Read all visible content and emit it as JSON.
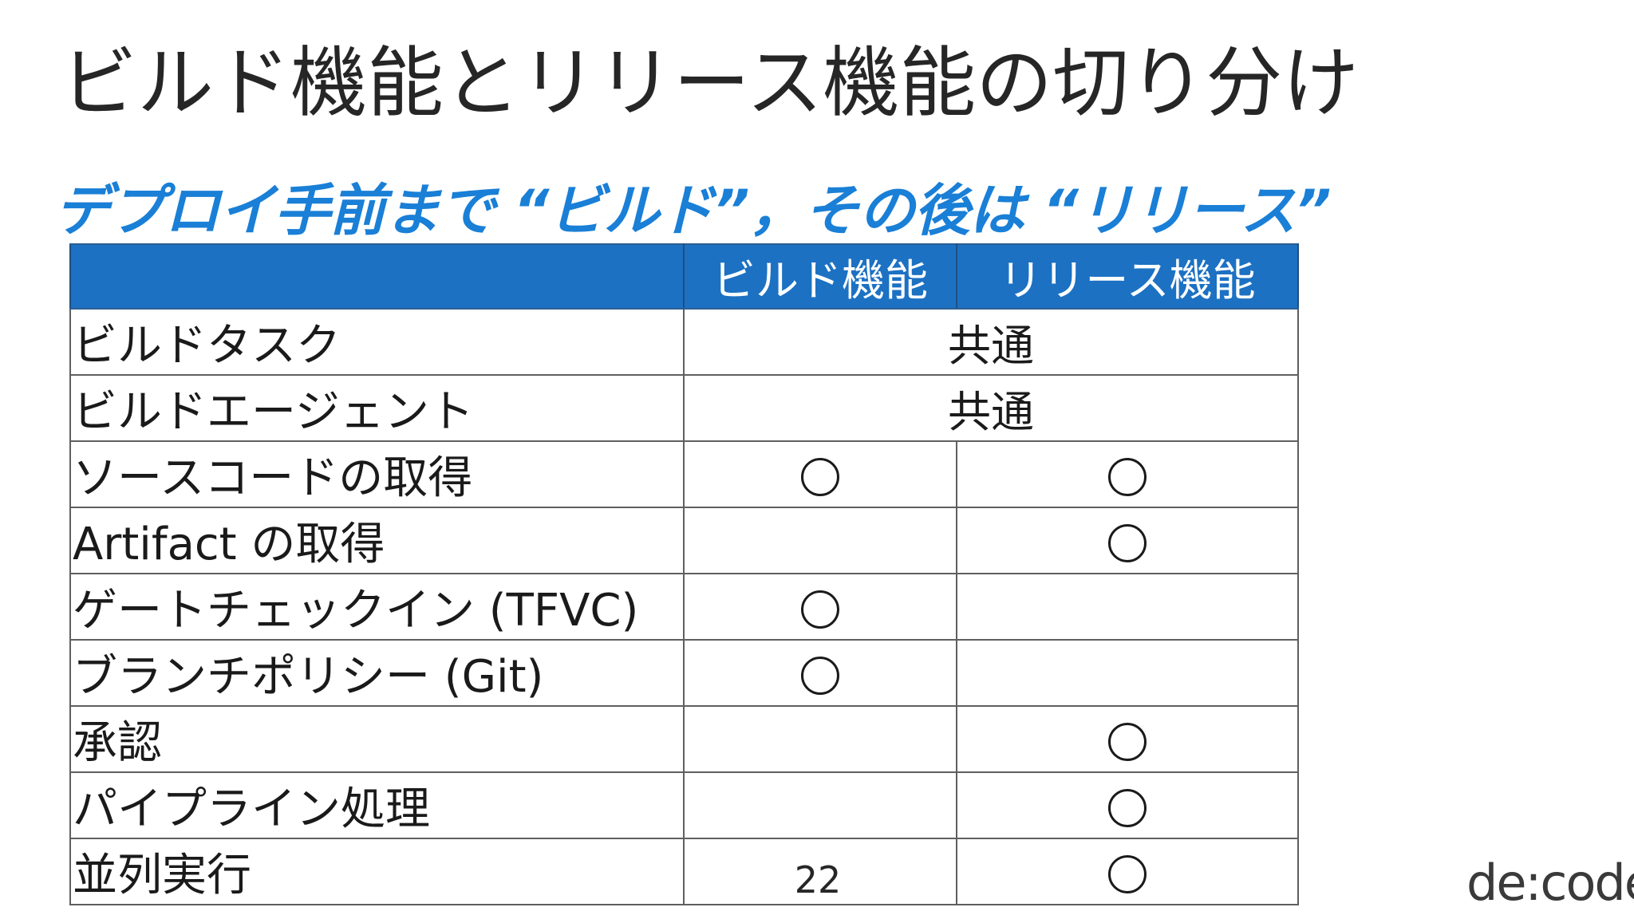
{
  "slide": {
    "title": "ビルド機能とリリース機能の切り分け",
    "subtitle": "デプロイ手前まで “ビルド”，その後は “リリース”",
    "page_number": "22",
    "logo": "de:code"
  },
  "table": {
    "headers": [
      "",
      "ビルド機能",
      "リリース機能"
    ],
    "rows": [
      {
        "label": "ビルドタスク",
        "shared": "共通"
      },
      {
        "label": "ビルドエージェント",
        "shared": "共通"
      },
      {
        "label": "ソースコードの取得",
        "build": true,
        "release": true
      },
      {
        "label": "Artifact の取得",
        "build": false,
        "release": true
      },
      {
        "label": "ゲートチェックイン (TFVC)",
        "build": true,
        "release": false
      },
      {
        "label": "ブランチポリシー (Git)",
        "build": true,
        "release": false
      },
      {
        "label": "承認",
        "build": false,
        "release": true
      },
      {
        "label": "パイプライン処理",
        "build": false,
        "release": true
      },
      {
        "label": "並列実行",
        "build": false,
        "release": true
      }
    ],
    "colors": {
      "header_bg": "#1c71c3",
      "subtitle": "#1a7fd6",
      "border": "#5f5f5f"
    },
    "icons": {
      "mark": "circle-mark-icon"
    }
  }
}
